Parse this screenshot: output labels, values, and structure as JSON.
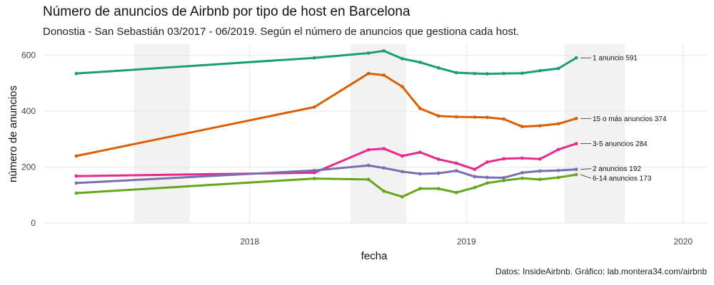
{
  "chart_data": {
    "type": "line",
    "title": "Número de anuncios de Airbnb por tipo de host en Barcelona",
    "subtitle": "Donostia - San Sebastián 03/2017 - 06/2019. Según el número de anuncios que gestiona cada host.",
    "caption": "Datos: InsideAirbnb. Gráfico: lab.montera34.com/airbnb",
    "xlabel": "fecha",
    "ylabel": "número de anuncios",
    "x_ticks": [
      "2018",
      "2019",
      "2020"
    ],
    "y_ticks": [
      0,
      200,
      400,
      600
    ],
    "ylim": [
      0,
      640
    ],
    "xlim": [
      "2017-01-20",
      "2020-02-10"
    ],
    "grid": true,
    "summer_bands": [
      [
        "2017-06-20",
        "2017-09-22"
      ],
      [
        "2018-06-20",
        "2018-09-22"
      ],
      [
        "2019-06-15",
        "2019-09-25"
      ]
    ],
    "dates": [
      "2017-03-15",
      "2018-04-20",
      "2018-07-20",
      "2018-08-15",
      "2018-09-15",
      "2018-10-15",
      "2018-11-15",
      "2018-12-15",
      "2019-01-15",
      "2019-02-05",
      "2019-03-05",
      "2019-04-05",
      "2019-05-05",
      "2019-06-05",
      "2019-07-05"
    ],
    "series": [
      {
        "name": "1 anuncio",
        "color": "#1b9e77",
        "values": [
          535,
          591,
          608,
          616,
          588,
          575,
          555,
          538,
          535,
          534,
          535,
          536,
          545,
          553,
          591
        ],
        "end_label": "1 anuncio 591"
      },
      {
        "name": "15 o más anuncios",
        "color": "#d95f02",
        "values": [
          240,
          415,
          535,
          529,
          488,
          410,
          383,
          380,
          379,
          378,
          372,
          345,
          348,
          355,
          374
        ],
        "end_label": "15 o más anuncios 374"
      },
      {
        "name": "3-5 anuncios",
        "color": "#e7298a",
        "values": [
          168,
          180,
          262,
          266,
          240,
          253,
          228,
          214,
          192,
          218,
          230,
          232,
          229,
          263,
          284
        ],
        "end_label": "3-5 anuncios 284"
      },
      {
        "name": "2 anuncios",
        "color": "#7570b3",
        "values": [
          143,
          188,
          206,
          197,
          184,
          176,
          178,
          187,
          166,
          163,
          162,
          180,
          186,
          188,
          192
        ],
        "end_label": "2 anuncios 192"
      },
      {
        "name": "6-14 anuncios",
        "color": "#66a61e",
        "values": [
          107,
          159,
          156,
          114,
          94,
          123,
          123,
          109,
          127,
          143,
          152,
          160,
          156,
          163,
          173
        ],
        "end_label": "6-14 anuncios 173"
      }
    ]
  }
}
